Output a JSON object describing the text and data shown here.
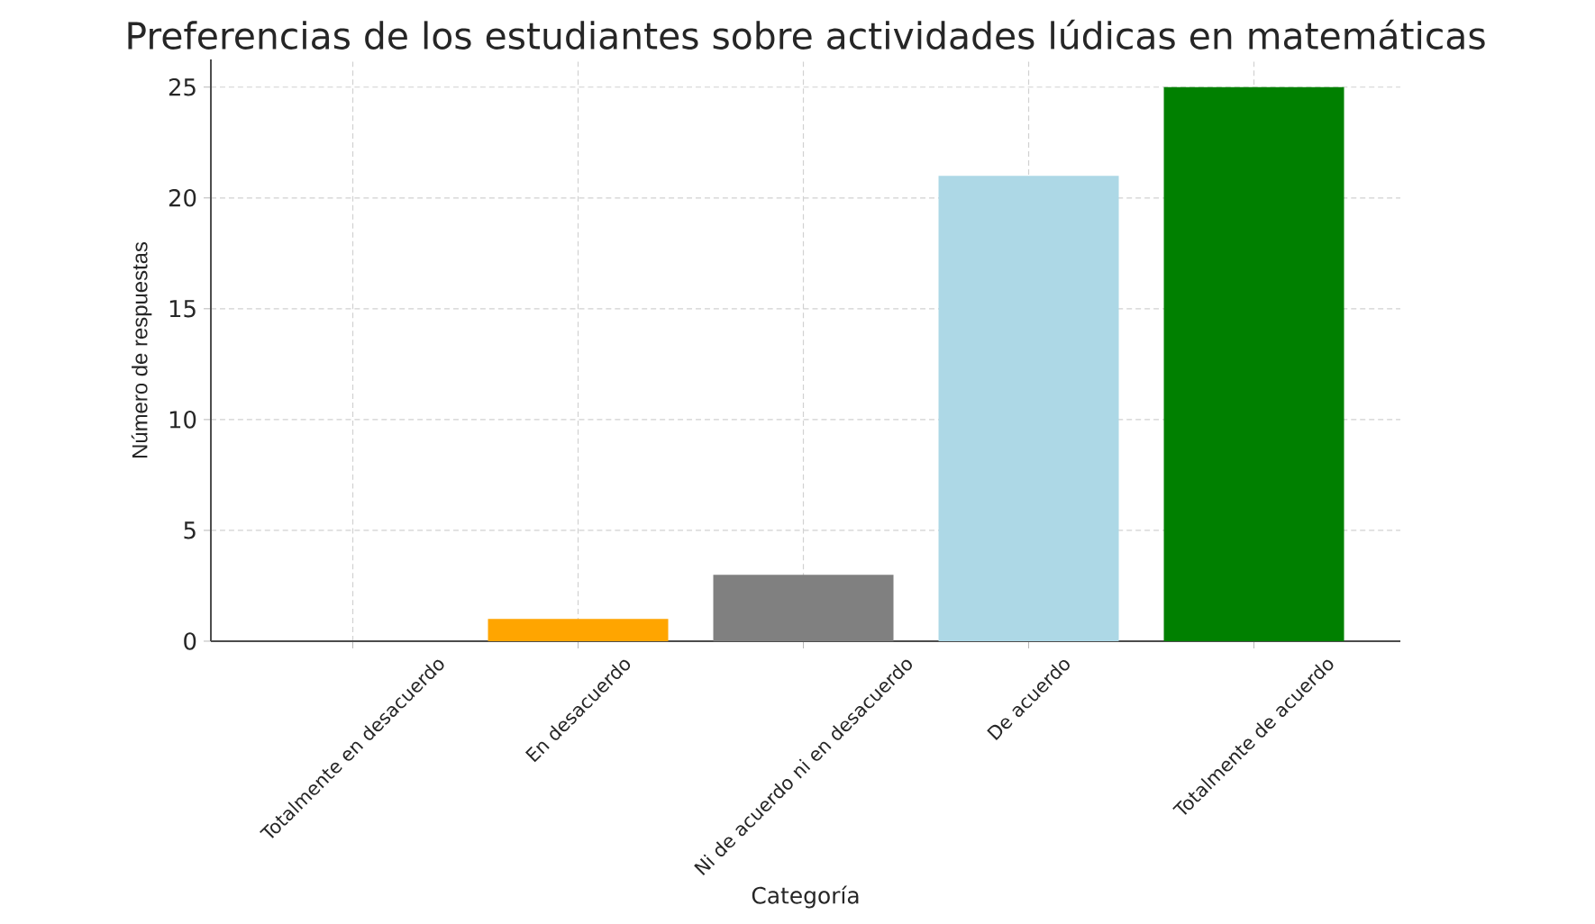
{
  "chart_data": {
    "type": "bar",
    "title": "Preferencias de los estudiantes sobre actividades lúdicas en matemáticas",
    "xlabel": "Categoría",
    "ylabel": "Número de respuestas",
    "categories": [
      "Totalmente en desacuerdo",
      "En desacuerdo",
      "Ni de acuerdo ni en desacuerdo",
      "De acuerdo",
      "Totalmente de acuerdo"
    ],
    "values": [
      0,
      1,
      3,
      21,
      25
    ],
    "colors": [
      "#ff0000",
      "#ffa500",
      "#808080",
      "#add8e6",
      "#008000"
    ],
    "ylim": [
      0,
      26.25
    ],
    "yticks": [
      0,
      5,
      10,
      15,
      20,
      25
    ],
    "grid": true
  }
}
